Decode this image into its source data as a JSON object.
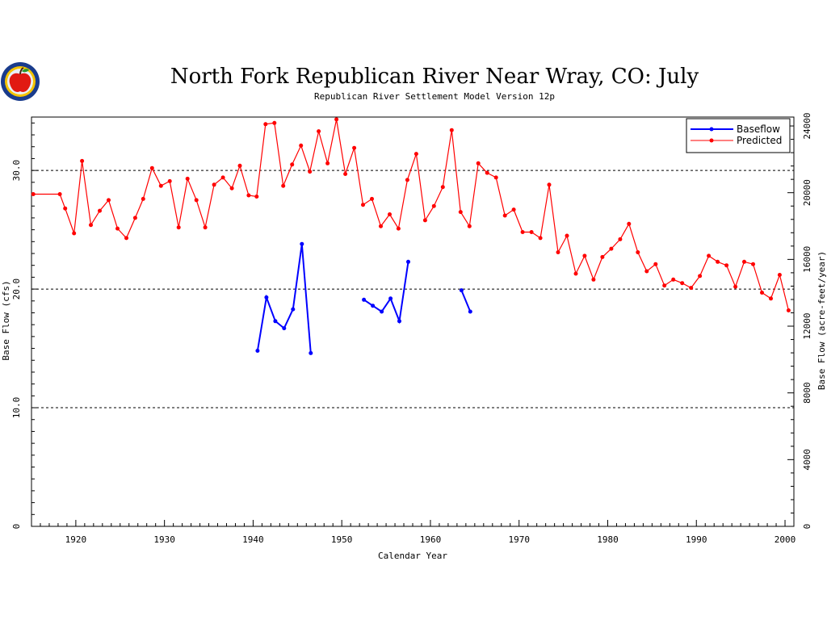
{
  "chart_data": {
    "type": "line",
    "title": "North Fork Republican River Near Wray, CO: July",
    "subtitle": "Republican River Settlement Model Version 12p",
    "xlabel": "Calendar Year",
    "ylabel": "Base Flow (cfs)",
    "ylabel_right": "Base Flow (acre-feet/year)",
    "xlim": [
      1915,
      2001
    ],
    "ylim": [
      0,
      34.5
    ],
    "ylim_right": [
      0,
      24534
    ],
    "x_ticks": [
      1920,
      1930,
      1940,
      1950,
      1960,
      1970,
      1980,
      1990,
      2000
    ],
    "y_ticks": [
      0,
      10.0,
      20.0,
      30.0
    ],
    "y_tick_labels": [
      "0",
      "10.0",
      "20.0",
      "30.0"
    ],
    "y_ticks_right": [
      0,
      4000,
      8000,
      12000,
      16000,
      20000,
      24000
    ],
    "y_tick_labels_right": [
      "0",
      "4000",
      "8000",
      "12000",
      "16000",
      "20000",
      "24000"
    ],
    "gridlines_y": [
      10,
      20,
      30
    ],
    "legend": {
      "position": "top-right"
    },
    "series": [
      {
        "name": "Baseflow",
        "color": "#0000ff",
        "points": [
          [
            1940.5,
            14.8
          ],
          [
            1941.5,
            19.3
          ],
          [
            1942.5,
            17.3
          ],
          [
            1943.5,
            16.7
          ],
          [
            1944.5,
            18.3
          ],
          [
            1945.5,
            23.8
          ],
          [
            1946.5,
            14.6
          ],
          null,
          [
            1952.5,
            19.1
          ],
          [
            1953.5,
            18.6
          ],
          [
            1954.5,
            18.1
          ],
          [
            1955.5,
            19.2
          ],
          [
            1956.5,
            17.3
          ],
          [
            1957.5,
            22.3
          ],
          null,
          [
            1963.5,
            19.9
          ],
          [
            1964.5,
            18.1
          ]
        ]
      },
      {
        "name": "Predicted",
        "color": "#ff0000",
        "points": [
          [
            1915.2,
            28.0
          ],
          [
            1918.2,
            28.0
          ],
          [
            1918.8,
            26.8
          ],
          [
            1919.8,
            24.7
          ],
          [
            1920.7,
            30.8
          ],
          [
            1921.7,
            25.4
          ],
          [
            1922.7,
            26.6
          ],
          [
            1923.7,
            27.5
          ],
          [
            1924.7,
            25.1
          ],
          [
            1925.7,
            24.3
          ],
          [
            1926.7,
            26.0
          ],
          [
            1927.6,
            27.6
          ],
          [
            1928.6,
            30.2
          ],
          [
            1929.6,
            28.7
          ],
          [
            1930.6,
            29.1
          ],
          [
            1931.6,
            25.2
          ],
          [
            1932.6,
            29.3
          ],
          [
            1933.6,
            27.5
          ],
          [
            1934.6,
            25.2
          ],
          [
            1935.6,
            28.8
          ],
          [
            1936.6,
            29.4
          ],
          [
            1937.6,
            28.5
          ],
          [
            1938.5,
            30.4
          ],
          [
            1939.5,
            27.9
          ],
          [
            1940.4,
            27.8
          ],
          [
            1941.4,
            33.9
          ],
          [
            1942.4,
            34.0
          ],
          [
            1943.4,
            28.7
          ],
          [
            1944.4,
            30.5
          ],
          [
            1945.4,
            32.1
          ],
          [
            1946.4,
            29.9
          ],
          [
            1947.4,
            33.3
          ],
          [
            1948.4,
            30.6
          ],
          [
            1949.4,
            34.3
          ],
          [
            1950.4,
            29.7
          ],
          [
            1951.4,
            31.9
          ],
          [
            1952.4,
            27.1
          ],
          [
            1953.4,
            27.6
          ],
          [
            1954.4,
            25.3
          ],
          [
            1955.4,
            26.3
          ],
          [
            1956.4,
            25.1
          ],
          [
            1957.4,
            29.2
          ],
          [
            1958.4,
            31.4
          ],
          [
            1959.4,
            25.8
          ],
          [
            1960.4,
            27.0
          ],
          [
            1961.4,
            28.6
          ],
          [
            1962.4,
            33.4
          ],
          [
            1963.4,
            26.5
          ],
          [
            1964.4,
            25.3
          ],
          [
            1965.4,
            30.6
          ],
          [
            1966.4,
            29.8
          ],
          [
            1967.4,
            29.4
          ],
          [
            1968.4,
            26.2
          ],
          [
            1969.4,
            26.7
          ],
          [
            1970.4,
            24.8
          ],
          [
            1971.4,
            24.8
          ],
          [
            1972.4,
            24.3
          ],
          [
            1973.4,
            28.8
          ],
          [
            1974.4,
            23.1
          ],
          [
            1975.4,
            24.5
          ],
          [
            1976.4,
            21.3
          ],
          [
            1977.4,
            22.8
          ],
          [
            1978.4,
            20.8
          ],
          [
            1979.4,
            22.7
          ],
          [
            1980.4,
            23.4
          ],
          [
            1981.4,
            24.2
          ],
          [
            1982.4,
            25.5
          ],
          [
            1983.4,
            23.1
          ],
          [
            1984.4,
            21.5
          ],
          [
            1985.4,
            22.1
          ],
          [
            1986.4,
            20.3
          ],
          [
            1987.4,
            20.8
          ],
          [
            1988.4,
            20.5
          ],
          [
            1989.4,
            20.1
          ],
          [
            1990.4,
            21.1
          ],
          [
            1991.4,
            22.8
          ],
          [
            1992.4,
            22.3
          ],
          [
            1993.4,
            22.0
          ],
          [
            1994.4,
            20.2
          ],
          [
            1995.4,
            22.3
          ],
          [
            1996.4,
            22.1
          ],
          [
            1997.4,
            19.7
          ],
          [
            1998.4,
            19.2
          ],
          [
            1999.4,
            21.2
          ],
          [
            2000.4,
            18.2
          ]
        ]
      }
    ]
  },
  "logo": {
    "name": "apple-logo"
  }
}
